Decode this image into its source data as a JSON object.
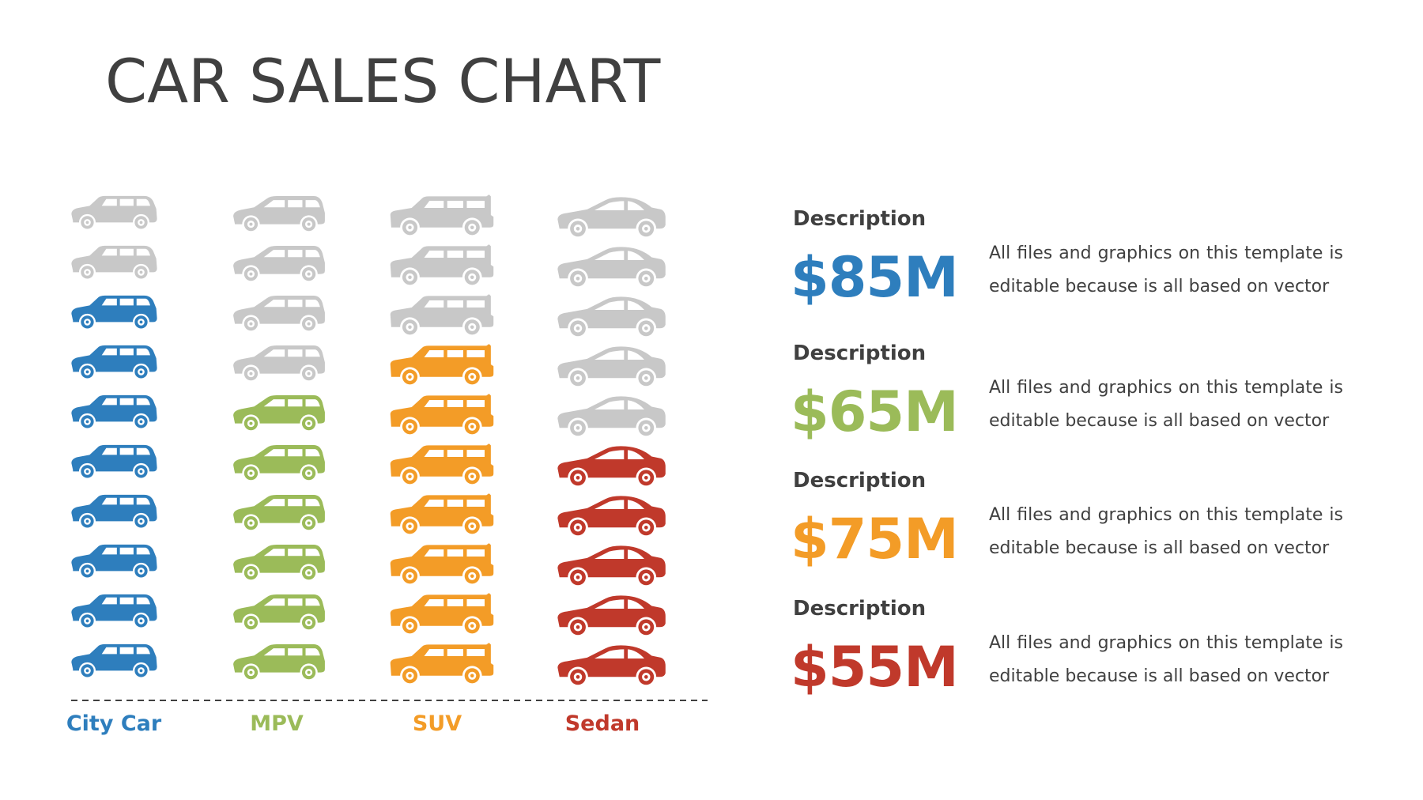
{
  "title": "CAR SALES CHART",
  "colors": {
    "inactive": "#c8c8c8",
    "text": "#404040",
    "city_car": "#2e7ebd",
    "mpv": "#9bbb59",
    "suv": "#f39c27",
    "sedan": "#c0392b"
  },
  "chart_data": {
    "type": "bar",
    "title": "CAR SALES CHART",
    "categories": [
      "City Car",
      "MPV",
      "SUV",
      "Sedan"
    ],
    "icons_total_per_column": 10,
    "values": [
      8,
      6,
      7,
      5
    ],
    "icon_names": [
      "hatchback-car-icon",
      "minivan-icon",
      "suv-icon",
      "sedan-icon"
    ],
    "category_colors": [
      "#2e7ebd",
      "#9bbb59",
      "#f39c27",
      "#c0392b"
    ]
  },
  "descriptions": [
    {
      "title": "Description",
      "value": "$85M",
      "text": "All files and graphics on this template is editable because is all based on vector",
      "color": "#2e7ebd"
    },
    {
      "title": "Description",
      "value": "$65M",
      "text": "All files and graphics on this template is editable because is all based on vector",
      "color": "#9bbb59"
    },
    {
      "title": "Description",
      "value": "$75M",
      "text": "All files and graphics on this template is editable because is all based on vector",
      "color": "#f39c27"
    },
    {
      "title": "Description",
      "value": "$55M",
      "text": "All files and graphics on this template is editable because is all based on vector",
      "color": "#c0392b"
    }
  ]
}
